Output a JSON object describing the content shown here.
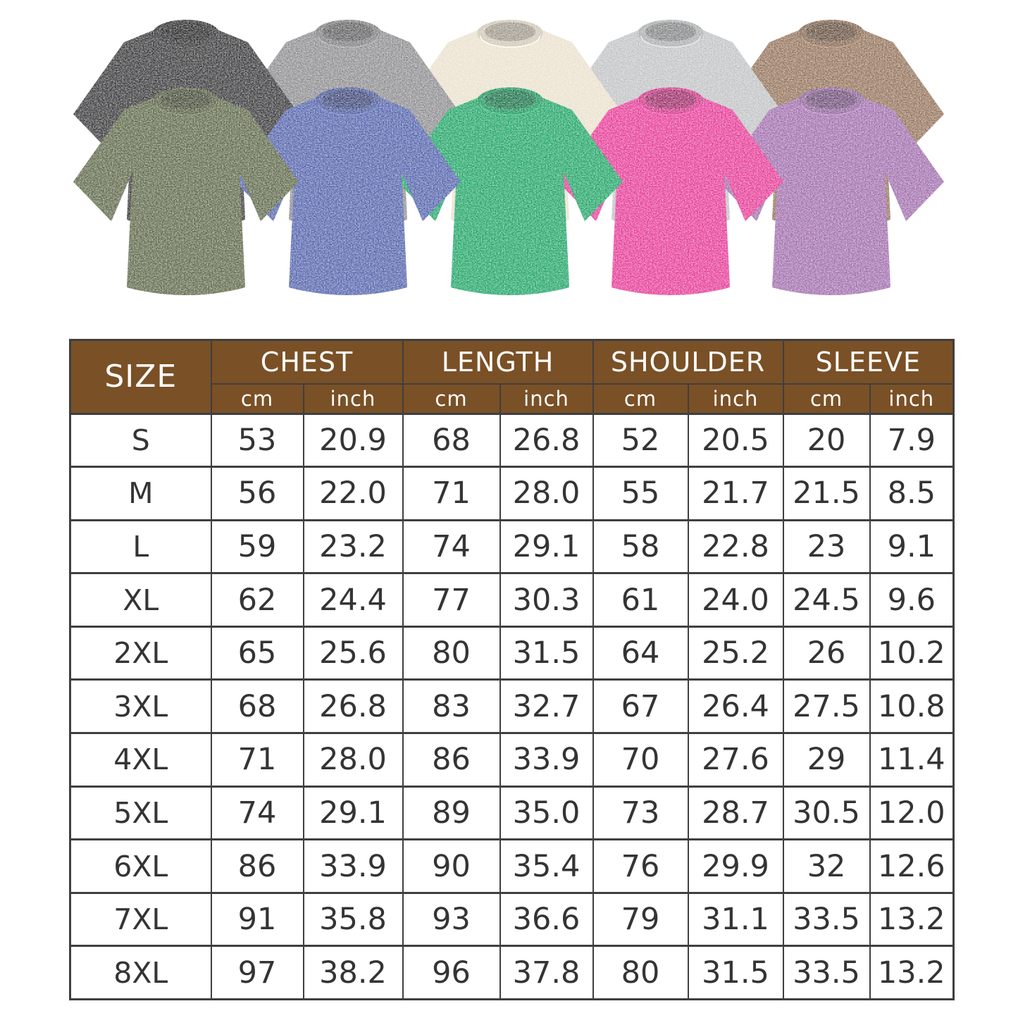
{
  "page": {
    "background": "#ffffff",
    "description_colors": {
      "table_header_bg": "#7a5026",
      "table_header_text": "#ffffff",
      "table_border": "#3f3f3f",
      "table_text": "#343434"
    }
  },
  "shirts": {
    "back_row": [
      {
        "name": "black",
        "color": "#2f2f31"
      },
      {
        "name": "gray",
        "color": "#87878a"
      },
      {
        "name": "cream",
        "color": "#e9dfca"
      },
      {
        "name": "light-gray",
        "color": "#bdbfc1"
      },
      {
        "name": "brown",
        "color": "#8e6c52"
      }
    ],
    "front_row": [
      {
        "name": "army-green",
        "color": "#566140"
      },
      {
        "name": "blue",
        "color": "#4b5ca8"
      },
      {
        "name": "green",
        "color": "#16a15f"
      },
      {
        "name": "rose-pink",
        "color": "#e53191"
      },
      {
        "name": "purple",
        "color": "#9c67a9"
      }
    ]
  },
  "size_chart": {
    "size_label": "SIZE",
    "columns": [
      "CHEST",
      "LENGTH",
      "SHOULDER",
      "SLEEVE"
    ],
    "unit_labels": [
      "cm",
      "inch"
    ]
  },
  "chart_data": {
    "type": "table",
    "title": "T-shirt size chart",
    "columns": [
      "SIZE",
      "CHEST cm",
      "CHEST inch",
      "LENGTH cm",
      "LENGTH inch",
      "SHOULDER cm",
      "SHOULDER inch",
      "SLEEVE cm",
      "SLEEVE inch"
    ],
    "rows": [
      [
        "S",
        "53",
        "20.9",
        "68",
        "26.8",
        "52",
        "20.5",
        "20",
        "7.9"
      ],
      [
        "M",
        "56",
        "22.0",
        "71",
        "28.0",
        "55",
        "21.7",
        "21.5",
        "8.5"
      ],
      [
        "L",
        "59",
        "23.2",
        "74",
        "29.1",
        "58",
        "22.8",
        "23",
        "9.1"
      ],
      [
        "XL",
        "62",
        "24.4",
        "77",
        "30.3",
        "61",
        "24.0",
        "24.5",
        "9.6"
      ],
      [
        "2XL",
        "65",
        "25.6",
        "80",
        "31.5",
        "64",
        "25.2",
        "26",
        "10.2"
      ],
      [
        "3XL",
        "68",
        "26.8",
        "83",
        "32.7",
        "67",
        "26.4",
        "27.5",
        "10.8"
      ],
      [
        "4XL",
        "71",
        "28.0",
        "86",
        "33.9",
        "70",
        "27.6",
        "29",
        "11.4"
      ],
      [
        "5XL",
        "74",
        "29.1",
        "89",
        "35.0",
        "73",
        "28.7",
        "30.5",
        "12.0"
      ],
      [
        "6XL",
        "86",
        "33.9",
        "90",
        "35.4",
        "76",
        "29.9",
        "32",
        "12.6"
      ],
      [
        "7XL",
        "91",
        "35.8",
        "93",
        "36.6",
        "79",
        "31.1",
        "33.5",
        "13.2"
      ],
      [
        "8XL",
        "97",
        "38.2",
        "96",
        "37.8",
        "80",
        "31.5",
        "33.5",
        "13.2"
      ]
    ]
  }
}
